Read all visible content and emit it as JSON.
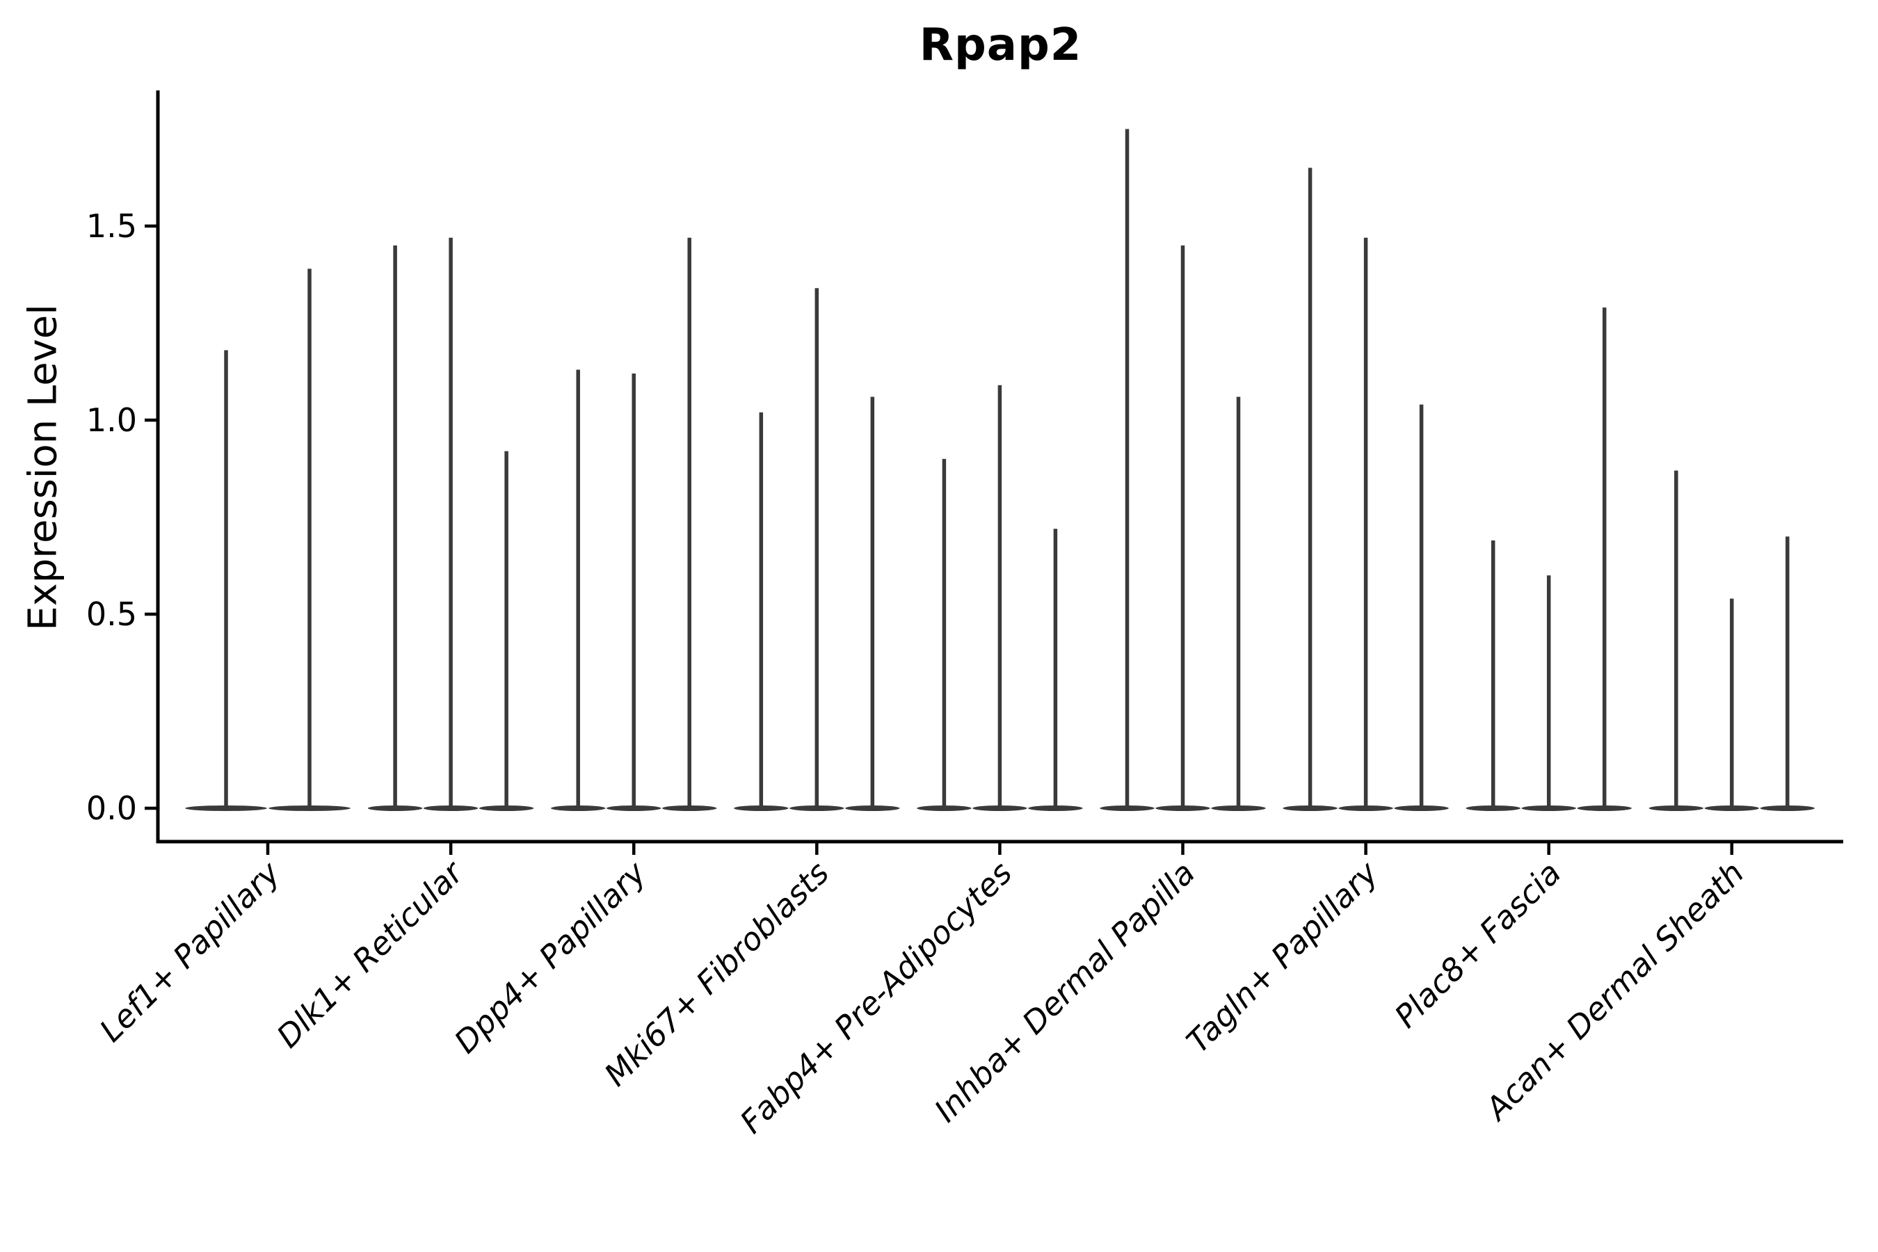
{
  "title": "Rpap2",
  "ylabel": "Expression Level",
  "yticks": [
    "0.0",
    "0.5",
    "1.0",
    "1.5"
  ],
  "ytick_values": [
    0.0,
    0.5,
    1.0,
    1.5
  ],
  "colors": {
    "violin": "#3a3a3a",
    "axis": "#000000",
    "text": "#000000",
    "background": "#ffffff"
  },
  "chart_data": {
    "type": "violin",
    "title": "Rpap2",
    "xlabel": "",
    "ylabel": "Expression Level",
    "ylim": [
      -0.09,
      1.85
    ],
    "grid": false,
    "legend": false,
    "categories": [
      "Lef1+ Papillary",
      "Dlk1+ Reticular",
      "Dpp4+ Papillary",
      "Mki67+ Fibroblasts",
      "Fabp4+ Pre-Adipocytes",
      "Inhba+ Dermal Papilla",
      "Tagln+ Papillary",
      "Plac8+ Fascia",
      "Acan+ Dermal Sheath"
    ],
    "violins_max_expression": [
      [
        1.18,
        1.39
      ],
      [
        1.45,
        1.47,
        0.92
      ],
      [
        1.13,
        1.12,
        1.47
      ],
      [
        1.02,
        1.34,
        1.06
      ],
      [
        0.9,
        1.09,
        0.72
      ],
      [
        1.75,
        1.45,
        1.06
      ],
      [
        1.65,
        1.47,
        1.04
      ],
      [
        0.69,
        0.6,
        1.29
      ],
      [
        0.87,
        0.54,
        0.7
      ]
    ],
    "violin_baseline_value": 0.0
  }
}
